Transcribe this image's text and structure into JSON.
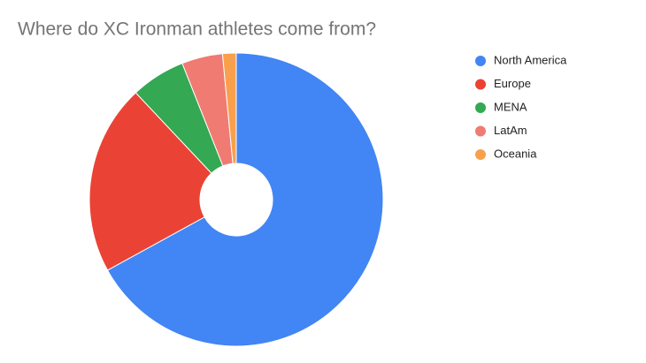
{
  "chart_data": {
    "type": "pie",
    "title": "Where do XC Ironman athletes come from?",
    "categories": [
      "North America",
      "Europe",
      "MENA",
      "LatAm",
      "Oceania"
    ],
    "values": [
      67,
      21,
      6,
      4.5,
      1.5
    ],
    "colors": [
      "#4285f4",
      "#ea4335",
      "#34a853",
      "#ef7b72",
      "#f9a04c"
    ],
    "donut": true
  }
}
